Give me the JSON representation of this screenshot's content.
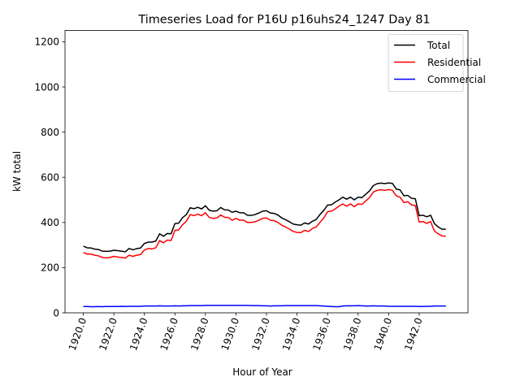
{
  "chart_data": {
    "type": "line",
    "title": "Timeseries Load for P16U p16uhs24_1247  Day 81",
    "xlabel": "Hour of Year",
    "ylabel": "kW total",
    "xlim": [
      1918.8,
      1945.2
    ],
    "ylim": [
      0,
      1250
    ],
    "xticks": [
      1920.0,
      1922.0,
      1924.0,
      1926.0,
      1928.0,
      1930.0,
      1932.0,
      1934.0,
      1936.0,
      1938.0,
      1940.0,
      1942.0
    ],
    "xtick_labels": [
      "1920.0",
      "1922.0",
      "1924.0",
      "1926.0",
      "1928.0",
      "1930.0",
      "1932.0",
      "1934.0",
      "1936.0",
      "1938.0",
      "1940.0",
      "1942.0"
    ],
    "yticks": [
      0,
      200,
      400,
      600,
      800,
      1000,
      1200
    ],
    "ytick_labels": [
      "0",
      "200",
      "400",
      "600",
      "800",
      "1000",
      "1200"
    ],
    "grid": false,
    "legend_position": "top-right",
    "series": [
      {
        "name": "Total",
        "color": "#000000",
        "x": [
          1920.0,
          1920.25,
          1920.5,
          1920.75,
          1921.0,
          1921.25,
          1921.5,
          1921.75,
          1922.0,
          1922.25,
          1922.5,
          1922.75,
          1923.0,
          1923.25,
          1923.5,
          1923.75,
          1924.0,
          1924.25,
          1924.5,
          1924.75,
          1925.0,
          1925.25,
          1925.5,
          1925.75,
          1926.0,
          1926.25,
          1926.5,
          1926.75,
          1927.0,
          1927.25,
          1927.5,
          1927.75,
          1928.0,
          1928.25,
          1928.5,
          1928.75,
          1929.0,
          1929.25,
          1929.5,
          1929.75,
          1930.0,
          1930.25,
          1930.5,
          1930.75,
          1931.0,
          1931.25,
          1931.5,
          1931.75,
          1932.0,
          1932.25,
          1932.5,
          1932.75,
          1933.0,
          1933.25,
          1933.5,
          1933.75,
          1934.0,
          1934.25,
          1934.5,
          1934.75,
          1935.0,
          1935.25,
          1935.5,
          1935.75,
          1936.0,
          1936.25,
          1936.5,
          1936.75,
          1937.0,
          1937.25,
          1937.5,
          1937.75,
          1938.0,
          1938.25,
          1938.5,
          1938.75,
          1939.0,
          1939.25,
          1939.5,
          1939.75,
          1940.0,
          1940.25,
          1940.5,
          1940.75,
          1941.0,
          1941.25,
          1941.5,
          1941.75,
          1942.0,
          1942.25,
          1942.5,
          1942.75,
          1943.0,
          1943.25,
          1943.5,
          1943.75
        ],
        "values": [
          295,
          288,
          287,
          282,
          280,
          273,
          272,
          273,
          277,
          275,
          273,
          270,
          285,
          279,
          284,
          287,
          307,
          313,
          313,
          318,
          350,
          339,
          351,
          350,
          395,
          397,
          421,
          435,
          465,
          461,
          467,
          460,
          474,
          454,
          450,
          452,
          466,
          456,
          455,
          445,
          450,
          443,
          443,
          432,
          431,
          435,
          442,
          450,
          452,
          442,
          440,
          433,
          420,
          412,
          403,
          393,
          390,
          388,
          398,
          393,
          405,
          413,
          435,
          453,
          477,
          478,
          490,
          500,
          512,
          503,
          512,
          500,
          512,
          510,
          525,
          540,
          563,
          572,
          574,
          572,
          575,
          573,
          548,
          544,
          518,
          520,
          507,
          505,
          430,
          432,
          425,
          432,
          395,
          380,
          370,
          370
        ]
      },
      {
        "name": "Residential",
        "color": "#ff0000",
        "x": [
          1920.0,
          1920.25,
          1920.5,
          1920.75,
          1921.0,
          1921.25,
          1921.5,
          1921.75,
          1922.0,
          1922.25,
          1922.5,
          1922.75,
          1923.0,
          1923.25,
          1923.5,
          1923.75,
          1924.0,
          1924.25,
          1924.5,
          1924.75,
          1925.0,
          1925.25,
          1925.5,
          1925.75,
          1926.0,
          1926.25,
          1926.5,
          1926.75,
          1927.0,
          1927.25,
          1927.5,
          1927.75,
          1928.0,
          1928.25,
          1928.5,
          1928.75,
          1929.0,
          1929.25,
          1929.5,
          1929.75,
          1930.0,
          1930.25,
          1930.5,
          1930.75,
          1931.0,
          1931.25,
          1931.5,
          1931.75,
          1932.0,
          1932.25,
          1932.5,
          1932.75,
          1933.0,
          1933.25,
          1933.5,
          1933.75,
          1934.0,
          1934.25,
          1934.5,
          1934.75,
          1935.0,
          1935.25,
          1935.5,
          1935.75,
          1936.0,
          1936.25,
          1936.5,
          1936.75,
          1937.0,
          1937.25,
          1937.5,
          1937.75,
          1938.0,
          1938.25,
          1938.5,
          1938.75,
          1939.0,
          1939.25,
          1939.5,
          1939.75,
          1940.0,
          1940.25,
          1940.5,
          1940.75,
          1941.0,
          1941.25,
          1941.5,
          1941.75,
          1942.0,
          1942.25,
          1942.5,
          1942.75,
          1943.0,
          1943.25,
          1943.5,
          1943.75
        ],
        "values": [
          267,
          260,
          260,
          255,
          252,
          245,
          243,
          245,
          250,
          247,
          245,
          242,
          255,
          250,
          255,
          258,
          278,
          285,
          283,
          288,
          320,
          310,
          322,
          320,
          365,
          367,
          390,
          405,
          435,
          430,
          437,
          430,
          443,
          422,
          418,
          420,
          433,
          423,
          422,
          410,
          418,
          410,
          410,
          400,
          400,
          403,
          410,
          418,
          420,
          410,
          408,
          400,
          388,
          380,
          371,
          360,
          356,
          355,
          365,
          360,
          373,
          380,
          400,
          420,
          448,
          450,
          460,
          472,
          482,
          472,
          482,
          470,
          482,
          480,
          495,
          510,
          535,
          542,
          545,
          542,
          546,
          542,
          518,
          512,
          488,
          492,
          478,
          475,
          402,
          404,
          396,
          404,
          362,
          350,
          340,
          340
        ]
      },
      {
        "name": "Commercial",
        "color": "#0000ff",
        "x": [
          1920.0,
          1920.25,
          1920.5,
          1920.75,
          1921.0,
          1921.25,
          1921.5,
          1921.75,
          1922.0,
          1922.25,
          1922.5,
          1922.75,
          1923.0,
          1923.25,
          1923.5,
          1923.75,
          1924.0,
          1924.25,
          1924.5,
          1924.75,
          1925.0,
          1925.25,
          1925.5,
          1925.75,
          1926.0,
          1926.25,
          1926.5,
          1926.75,
          1927.0,
          1927.25,
          1927.5,
          1927.75,
          1928.0,
          1928.25,
          1928.5,
          1928.75,
          1929.0,
          1929.25,
          1929.5,
          1929.75,
          1930.0,
          1930.25,
          1930.5,
          1930.75,
          1931.0,
          1931.25,
          1931.5,
          1931.75,
          1932.0,
          1932.25,
          1932.5,
          1932.75,
          1933.0,
          1933.25,
          1933.5,
          1933.75,
          1934.0,
          1934.25,
          1934.5,
          1934.75,
          1935.0,
          1935.25,
          1935.5,
          1935.75,
          1936.0,
          1936.25,
          1936.5,
          1936.75,
          1937.0,
          1937.25,
          1937.5,
          1937.75,
          1938.0,
          1938.25,
          1938.5,
          1938.75,
          1939.0,
          1939.25,
          1939.5,
          1939.75,
          1940.0,
          1940.25,
          1940.5,
          1940.75,
          1941.0,
          1941.25,
          1941.5,
          1941.75,
          1942.0,
          1942.25,
          1942.5,
          1942.75,
          1943.0,
          1943.25,
          1943.5,
          1943.75
        ],
        "values": [
          28,
          28,
          27,
          27,
          28,
          27,
          28,
          28,
          28,
          28,
          29,
          28,
          29,
          29,
          29,
          29,
          30,
          30,
          30,
          30,
          31,
          30,
          30,
          30,
          31,
          30,
          31,
          31,
          32,
          32,
          32,
          32,
          33,
          33,
          33,
          33,
          33,
          33,
          33,
          33,
          33,
          33,
          33,
          33,
          32,
          32,
          32,
          31,
          31,
          30,
          31,
          31,
          31,
          32,
          32,
          32,
          32,
          32,
          32,
          32,
          32,
          32,
          31,
          30,
          29,
          28,
          27,
          27,
          30,
          31,
          31,
          31,
          32,
          31,
          30,
          30,
          31,
          30,
          30,
          30,
          29,
          29,
          29,
          29,
          29,
          29,
          29,
          29,
          28,
          28,
          29,
          29,
          30,
          30,
          30,
          30
        ]
      }
    ]
  }
}
